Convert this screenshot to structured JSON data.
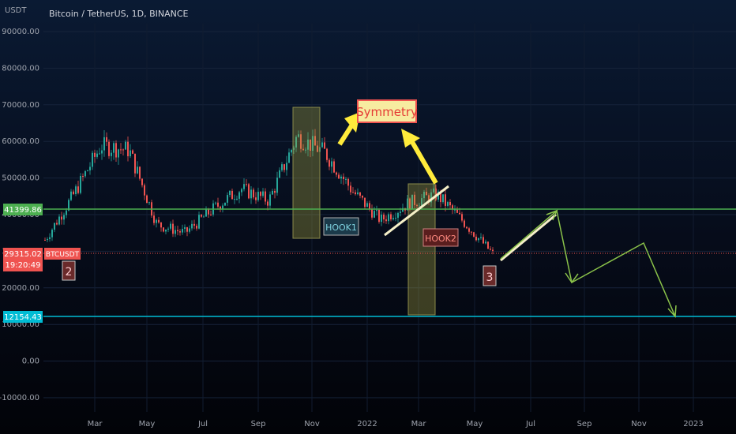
{
  "header": {
    "unit": "USDT",
    "symbol_title": "Bitcoin / TetherUS, 1D, BINANCE"
  },
  "price_axis": {
    "ticks": [
      "90000.00",
      "80000.00",
      "70000.00",
      "60000.00",
      "50000.00",
      "40000.00",
      "30000.00",
      "20000.00",
      "10000.00",
      "0.00",
      "-10000.00"
    ],
    "tick_values": [
      90000,
      80000,
      70000,
      60000,
      50000,
      40000,
      30000,
      20000,
      10000,
      0,
      -10000
    ]
  },
  "time_axis": {
    "ticks": [
      "Mar",
      "May",
      "Jul",
      "Sep",
      "Nov",
      "2022",
      "Mar",
      "May",
      "Jul",
      "Sep",
      "Nov",
      "2023"
    ]
  },
  "labels": {
    "upper_level": "41399.86",
    "current_price": "29315.02",
    "current_symbol": "BTCUSDT",
    "countdown": "19:20:49",
    "lower_level": "12154.43"
  },
  "annotations": {
    "symmetry": "Symmetry",
    "hook1": "HOOK1",
    "hook2": "HOOK2",
    "wave2": "2",
    "wave3": "3"
  },
  "colors": {
    "upper_level_line": "#4caf50",
    "lower_level_line": "#00bcd4",
    "current_price": "#ef5350",
    "candle_up": "#26a69a",
    "candle_down": "#ef5350",
    "projection": "#8bc34a",
    "symmetry_box": "#ef5350",
    "arrow_yellow": "#ffeb3b",
    "hook_box": "#a6a23e"
  },
  "chart_data": {
    "type": "candlestick",
    "title": "Bitcoin / TetherUS, 1D, BINANCE",
    "ylabel": "USDT",
    "ylim": [
      -15000,
      95000
    ],
    "x": [
      "2021-01",
      "2021-02",
      "2021-03",
      "2021-04",
      "2021-05",
      "2021-06",
      "2021-07",
      "2021-08",
      "2021-09",
      "2021-10",
      "2021-11",
      "2021-12",
      "2022-01",
      "2022-02",
      "2022-03",
      "2022-04",
      "2022-05"
    ],
    "close": [
      33100,
      45200,
      58800,
      57700,
      37300,
      35000,
      41500,
      47100,
      43800,
      61300,
      57000,
      46300,
      38500,
      43200,
      45500,
      37700,
      29315
    ],
    "horizontal_levels": [
      {
        "name": "41399.86",
        "value": 41399.86
      },
      {
        "name": "29315.02",
        "value": 29315.02
      },
      {
        "name": "12154.43",
        "value": 12154.43
      }
    ],
    "projection_path": [
      {
        "x": "2022-05-15",
        "y": 30000
      },
      {
        "x": "2022-08-10",
        "y": 41400
      },
      {
        "x": "2022-08-25",
        "y": 21500
      },
      {
        "x": "2022-11-05",
        "y": 33000
      },
      {
        "x": "2022-12-20",
        "y": 12154
      }
    ]
  }
}
